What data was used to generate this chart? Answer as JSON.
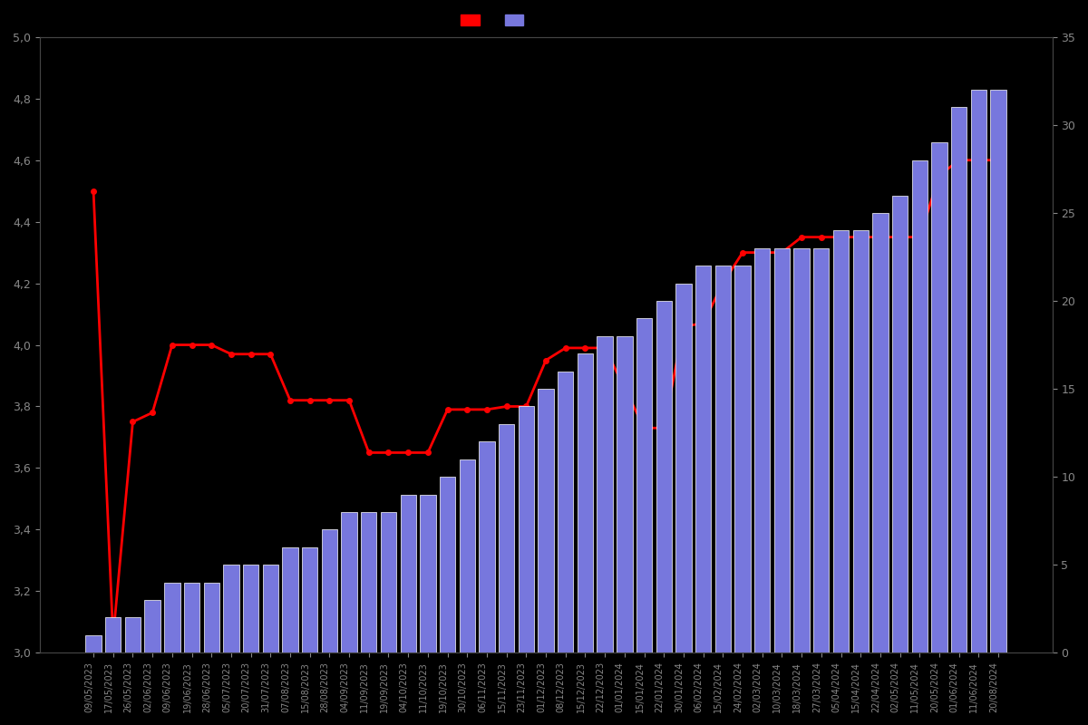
{
  "dates": [
    "09/05/2023",
    "17/05/2023",
    "26/05/2023",
    "02/06/2023",
    "09/06/2023",
    "19/06/2023",
    "28/06/2023",
    "05/07/2023",
    "20/07/2023",
    "31/07/2023",
    "07/08/2023",
    "15/08/2023",
    "28/08/2023",
    "04/09/2023",
    "11/09/2023",
    "19/09/2023",
    "04/10/2023",
    "11/10/2023",
    "19/10/2023",
    "30/10/2023",
    "06/11/2023",
    "15/11/2023",
    "23/11/2023",
    "01/12/2023",
    "08/12/2023",
    "15/12/2023",
    "22/12/2023",
    "01/01/2024",
    "15/01/2024",
    "22/01/2024",
    "30/01/2024",
    "06/02/2024",
    "15/02/2024",
    "24/02/2024",
    "02/03/2024",
    "10/03/2024",
    "18/03/2024",
    "27/03/2024",
    "05/04/2024",
    "15/04/2024",
    "22/04/2024",
    "02/05/2024",
    "11/05/2024",
    "20/05/2024",
    "01/06/2024",
    "11/06/2024",
    "20/08/2024"
  ],
  "bar_values": [
    1,
    2,
    2,
    3,
    4,
    4,
    4,
    5,
    5,
    5,
    6,
    6,
    7,
    8,
    8,
    8,
    9,
    9,
    10,
    11,
    12,
    13,
    14,
    15,
    16,
    17,
    18,
    18,
    19,
    20,
    21,
    22,
    22,
    22,
    23,
    23,
    23,
    23,
    24,
    24,
    25,
    26,
    28,
    29,
    31,
    32,
    32
  ],
  "line_values": [
    4.5,
    3.05,
    3.75,
    3.78,
    4.0,
    4.0,
    4.0,
    3.97,
    3.97,
    3.97,
    3.82,
    3.82,
    3.82,
    3.82,
    3.65,
    3.65,
    3.65,
    3.65,
    3.79,
    3.79,
    3.79,
    3.8,
    3.8,
    3.95,
    3.99,
    3.99,
    3.99,
    3.86,
    3.73,
    3.73,
    4.06,
    4.07,
    4.2,
    4.3,
    4.3,
    4.3,
    4.35,
    4.35,
    4.35,
    4.35,
    4.35,
    4.35,
    4.35,
    4.55,
    4.6,
    4.6,
    4.6
  ],
  "background_color": "#000000",
  "bar_color": "#7777dd",
  "bar_edge_color": "#ffffff",
  "line_color": "#ff0000",
  "left_ylim": [
    3.0,
    5.0
  ],
  "right_ylim": [
    0,
    35
  ],
  "left_yticks": [
    3.0,
    3.2,
    3.4,
    3.6,
    3.8,
    4.0,
    4.2,
    4.4,
    4.6,
    4.8,
    5.0
  ],
  "right_yticks": [
    0,
    5,
    10,
    15,
    20,
    25,
    30,
    35
  ],
  "tick_color": "#888888",
  "text_color": "#888888",
  "spine_color": "#444444"
}
